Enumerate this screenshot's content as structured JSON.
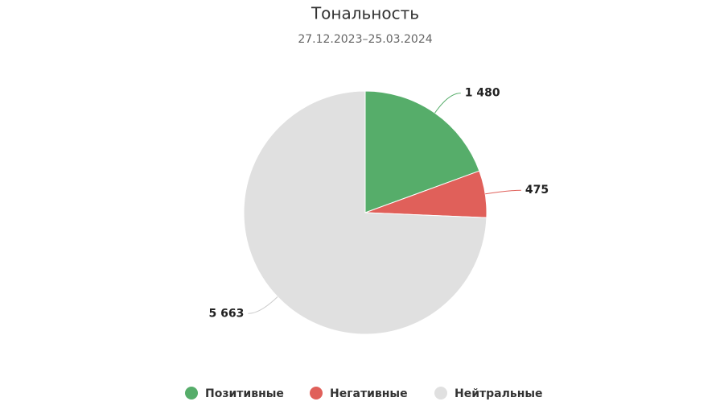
{
  "chart_data": {
    "type": "pie",
    "title": "Тональность",
    "subtitle": "27.12.2023–25.03.2024",
    "categories": [
      "Позитивные",
      "Негативные",
      "Нейтральные"
    ],
    "values": [
      1480,
      475,
      5663
    ],
    "value_labels": [
      "1 480",
      "475",
      "5 663"
    ],
    "colors": [
      "#56ad6a",
      "#e0605a",
      "#e0e0e0"
    ]
  }
}
